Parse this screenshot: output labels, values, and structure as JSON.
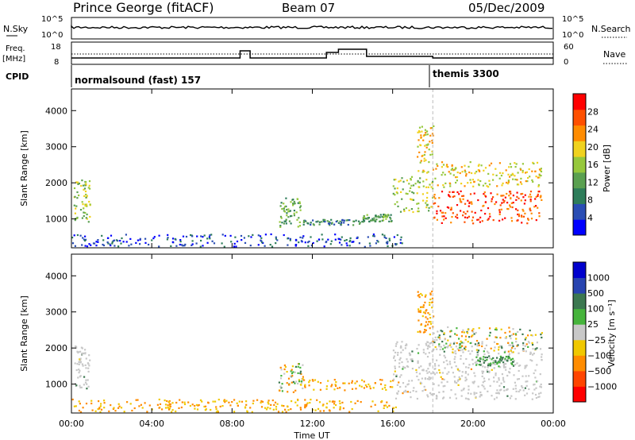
{
  "header": {
    "station": "Prince George (fitACF)",
    "beam": "Beam 07",
    "date": "05/Dec/2009"
  },
  "top_panels": {
    "nsky_label": "N.Sky",
    "nsearch_label": "N.Search",
    "nsky_ticks": [
      "10^5",
      "10^0"
    ],
    "nsearch_ticks": [
      "10^5",
      "10^0"
    ],
    "freq_label": "Freq.",
    "freq_unit": "[MHz]",
    "freq_ticks": [
      "18",
      "8"
    ],
    "nave_label": "Nave",
    "nave_ticks": [
      "60",
      "0"
    ],
    "cpid_label": "CPID",
    "cpid_entries": [
      {
        "name": "normalsound (fast) 157",
        "start_hour": 0
      },
      {
        "name": "themis 3300",
        "start_hour": 18
      }
    ]
  },
  "colors": {
    "power": [
      "#0000ff",
      "#2a4db4",
      "#2e7d5a",
      "#5aa050",
      "#96c83c",
      "#f0d21e",
      "#ff8c00",
      "#ff5000",
      "#ff0000"
    ],
    "velocity": [
      "#0000cd",
      "#2844b0",
      "#3c7850",
      "#46b43c",
      "#c8c8c8",
      "#f0c800",
      "#ff8c00",
      "#ff4500",
      "#ff0000"
    ],
    "ground": "#c8c8c8"
  },
  "chart_data": [
    {
      "type": "heatmap",
      "name": "power",
      "ylabel": "Slant Range [km]",
      "yticks": [
        1000,
        2000,
        3000,
        4000
      ],
      "ylim": [
        200,
        4600
      ],
      "xlim": [
        0,
        24
      ],
      "colorbar": {
        "label": "Power [dB]",
        "ticks": [
          "4",
          "8",
          "12",
          "16",
          "20",
          "24",
          "28"
        ]
      },
      "features": [
        {
          "t": [
            0.1,
            0.9
          ],
          "r": [
            900,
            2100
          ],
          "level": 0.5
        },
        {
          "t": [
            10.3,
            11.5
          ],
          "r": [
            800,
            1600
          ],
          "level": 0.35
        },
        {
          "t": [
            11.5,
            14.5
          ],
          "r": [
            850,
            1000
          ],
          "level": 0.2
        },
        {
          "t": [
            14.5,
            16.0
          ],
          "r": [
            950,
            1150
          ],
          "level": 0.35
        },
        {
          "t": [
            16.0,
            18.0
          ],
          "r": [
            1200,
            2200
          ],
          "level": 0.55
        },
        {
          "t": [
            17.2,
            18.0
          ],
          "r": [
            2300,
            3600
          ],
          "level": 0.6
        },
        {
          "t": [
            18.0,
            23.4
          ],
          "r": [
            900,
            1800
          ],
          "level": 0.9
        },
        {
          "t": [
            18.0,
            23.4
          ],
          "r": [
            1900,
            2600
          ],
          "level": 0.65
        },
        {
          "t": [
            0.0,
            16.5
          ],
          "r": [
            250,
            600
          ],
          "level": 0.15
        }
      ]
    },
    {
      "type": "heatmap",
      "name": "velocity",
      "ylabel": "Slant Range [km]",
      "xlabel": "Time UT",
      "xticks": [
        "00:00",
        "04:00",
        "08:00",
        "12:00",
        "16:00",
        "20:00",
        "00:00"
      ],
      "yticks": [
        1000,
        2000,
        3000,
        4000
      ],
      "ylim": [
        200,
        4600
      ],
      "xlim": [
        0,
        24
      ],
      "colorbar": {
        "label": "Velocity [m s⁻¹]",
        "ticks": [
          "1000",
          "500",
          "100",
          "25",
          "−25",
          "−100",
          "−500",
          "−1000"
        ]
      },
      "features": [
        {
          "t": [
            0.1,
            0.9
          ],
          "r": [
            900,
            2100
          ],
          "class": "ground"
        },
        {
          "t": [
            10.3,
            11.5
          ],
          "r": [
            800,
            1600
          ],
          "class": "mixed"
        },
        {
          "t": [
            11.5,
            16.0
          ],
          "r": [
            850,
            1150
          ],
          "class": "negative"
        },
        {
          "t": [
            16.0,
            23.4
          ],
          "r": [
            600,
            2200
          ],
          "class": "ground"
        },
        {
          "t": [
            17.2,
            18.0
          ],
          "r": [
            2300,
            3600
          ],
          "class": "negative"
        },
        {
          "t": [
            20.0,
            22.0
          ],
          "r": [
            1500,
            1800
          ],
          "class": "positive"
        },
        {
          "t": [
            18.0,
            23.4
          ],
          "r": [
            1900,
            2600
          ],
          "class": "mixed"
        },
        {
          "t": [
            0.0,
            16.5
          ],
          "r": [
            250,
            600
          ],
          "class": "negative"
        }
      ]
    }
  ]
}
